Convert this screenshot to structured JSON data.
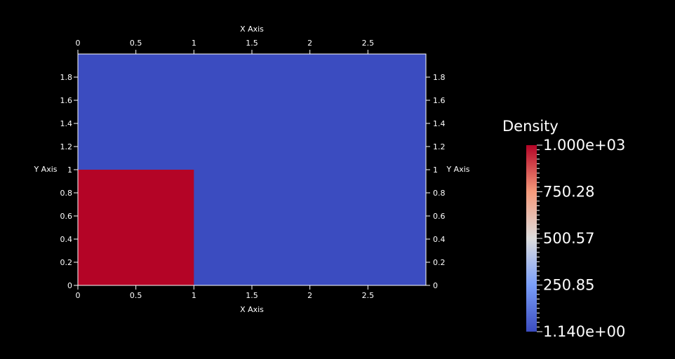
{
  "colors": {
    "background": "#000000",
    "low": "#3b4cc0",
    "high": "#b40426",
    "axis": "#ffffff"
  },
  "chart_data": {
    "type": "heatmap",
    "xlabel": "X Axis",
    "ylabel": "Y Axis",
    "xlim": [
      0,
      3
    ],
    "ylim": [
      0,
      2
    ],
    "x_ticks": [
      "0",
      "0.5",
      "1",
      "1.5",
      "2",
      "2.5"
    ],
    "y_ticks": [
      "0",
      "0.2",
      "0.4",
      "0.6",
      "0.8",
      "1",
      "1.2",
      "1.4",
      "1.6",
      "1.8"
    ],
    "regions": [
      {
        "x": [
          0,
          3
        ],
        "y": [
          0,
          2
        ],
        "value": 1.14
      },
      {
        "x": [
          0,
          1
        ],
        "y": [
          0,
          1
        ],
        "value": 1000
      }
    ],
    "colorbar": {
      "title": "Density",
      "range": [
        1.14,
        1000
      ],
      "labels": [
        "1.000e+03",
        "750.28",
        "500.57",
        "250.85",
        "1.140e+00"
      ],
      "label_values": [
        1000,
        750.28,
        500.57,
        250.85,
        1.14
      ]
    }
  }
}
